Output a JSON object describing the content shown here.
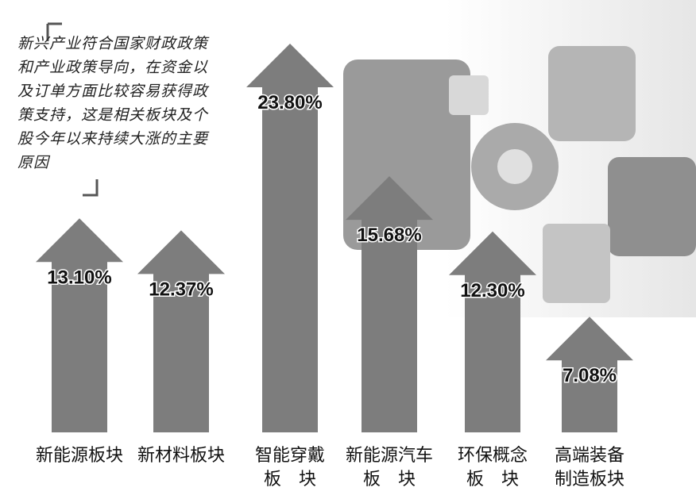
{
  "chart_data": {
    "type": "arrow-bar",
    "annotation": "新兴产业符合国家财政政策和产业政策导向，在资金以及订单方面比较容易获得政策支持，这是相关板块及个股今年以来持续大涨的主要原因",
    "categories": [
      "新能源板块",
      "新材料板块",
      "智能穿戴\n板　块",
      "新能源汽车\n板　块",
      "环保概念\n板　块",
      "高端装备\n制造板块"
    ],
    "values": [
      13.1,
      12.37,
      23.8,
      15.68,
      12.3,
      7.08
    ],
    "value_labels": [
      "13.10%",
      "12.37%",
      "23.80%",
      "15.68%",
      "12.30%",
      "7.08%"
    ],
    "color": "#7d7d7d"
  }
}
